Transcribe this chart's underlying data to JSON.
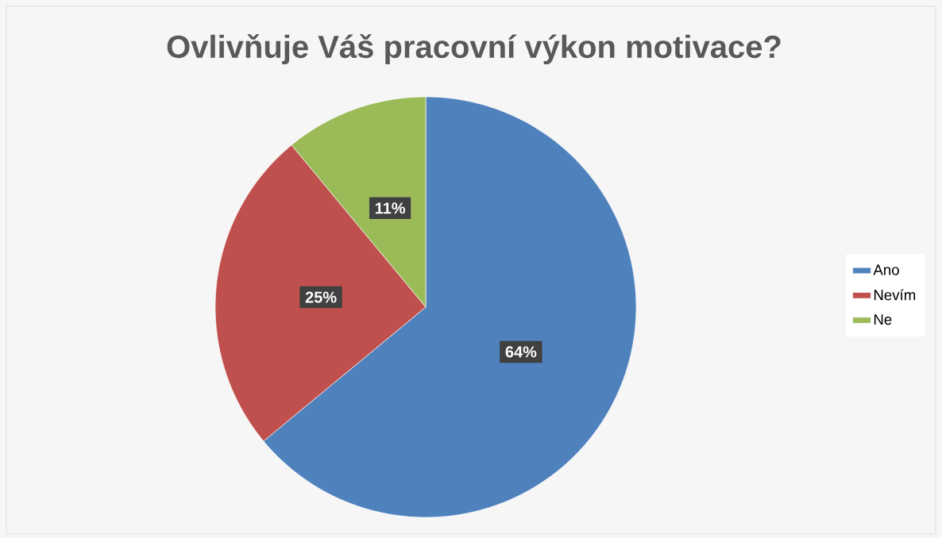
{
  "chart_data": {
    "type": "pie",
    "title": "Ovlivňuje Váš pracovní výkon motivace?",
    "categories": [
      "Ano",
      "Nevím",
      "Ne"
    ],
    "values": [
      64,
      25,
      11
    ],
    "colors": [
      "#4f81bd",
      "#c0504d",
      "#9bbb59"
    ],
    "value_labels": [
      "64%",
      "25%",
      "11%"
    ],
    "legend": "right"
  }
}
